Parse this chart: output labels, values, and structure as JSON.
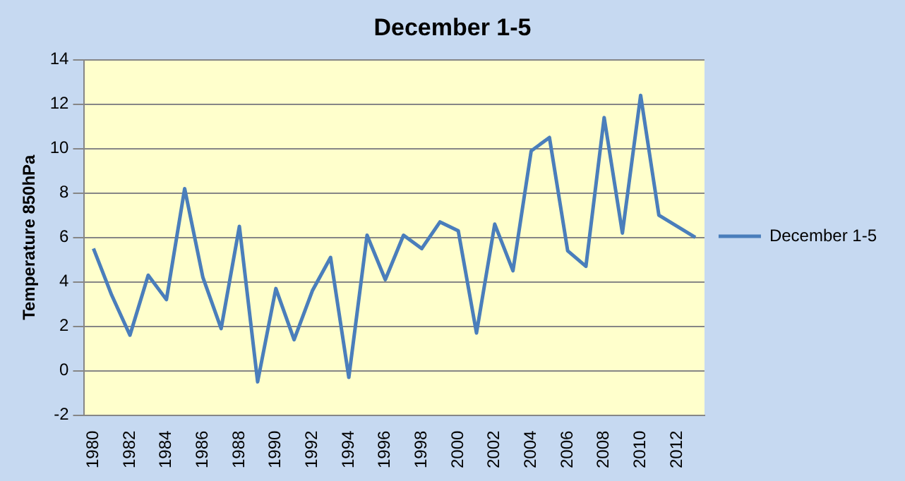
{
  "chart_data": {
    "type": "line",
    "title": "December 1-5",
    "ylabel": "Temperature 850hPa",
    "categories": [
      "1980",
      null,
      "1982",
      null,
      "1984",
      null,
      "1986",
      null,
      "1988",
      null,
      "1990",
      null,
      "1992",
      null,
      "1994",
      null,
      "1996",
      null,
      "1998",
      null,
      "2000",
      null,
      "2002",
      null,
      "2004",
      null,
      "2006",
      null,
      "2008",
      null,
      "2010",
      null,
      "2012",
      null
    ],
    "series": [
      {
        "name": "December 1-5",
        "color": "#4a7ebb",
        "values": [
          5.5,
          3.4,
          1.6,
          4.3,
          3.2,
          8.2,
          4.2,
          1.9,
          6.5,
          -0.5,
          3.7,
          1.4,
          3.6,
          5.1,
          -0.3,
          6.1,
          4.1,
          6.1,
          5.5,
          6.7,
          6.3,
          1.7,
          6.6,
          4.5,
          9.9,
          10.5,
          5.4,
          4.7,
          11.4,
          6.2,
          12.4,
          7.0,
          6.5,
          6.0
        ]
      }
    ],
    "ylim": [
      -2,
      14
    ],
    "yticks": [
      -2,
      0,
      2,
      4,
      6,
      8,
      10,
      12,
      14
    ],
    "grid": "y",
    "legend": "right",
    "marker": "none",
    "line_style": "solid"
  }
}
